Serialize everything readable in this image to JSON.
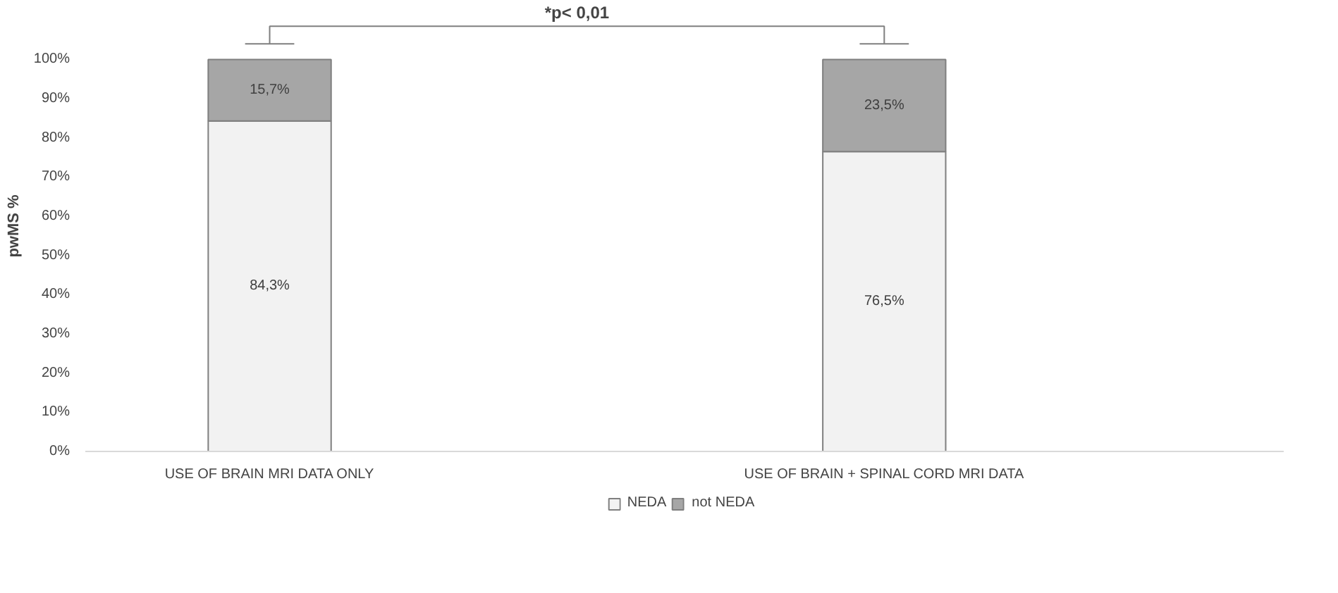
{
  "chart_data": {
    "type": "bar",
    "stacked": true,
    "ylabel": "pwMS %",
    "categories": [
      "USE OF BRAIN MRI DATA ONLY",
      "USE OF BRAIN + SPINAL CORD MRI DATA"
    ],
    "series": [
      {
        "name": "NEDA",
        "color": "#f2f2f2",
        "values": [
          84.3,
          76.5
        ],
        "value_labels": [
          "84,3%",
          "76,5%"
        ]
      },
      {
        "name": "not NEDA",
        "color": "#a6a6a6",
        "values": [
          15.7,
          23.5
        ],
        "value_labels": [
          "15,7%",
          "23,5%"
        ]
      }
    ],
    "ylim": [
      0,
      100
    ],
    "yticks": [
      {
        "value": 0,
        "label": "0%"
      },
      {
        "value": 10,
        "label": "10%"
      },
      {
        "value": 20,
        "label": "20%"
      },
      {
        "value": 30,
        "label": "30%"
      },
      {
        "value": 40,
        "label": "40%"
      },
      {
        "value": 50,
        "label": "50%"
      },
      {
        "value": 60,
        "label": "60%"
      },
      {
        "value": 70,
        "label": "70%"
      },
      {
        "value": 80,
        "label": "80%"
      },
      {
        "value": 90,
        "label": "90%"
      },
      {
        "value": 100,
        "label": "100%"
      }
    ],
    "annotations": [
      "*p< 0,01"
    ],
    "legend": "bottom",
    "grid": false
  }
}
